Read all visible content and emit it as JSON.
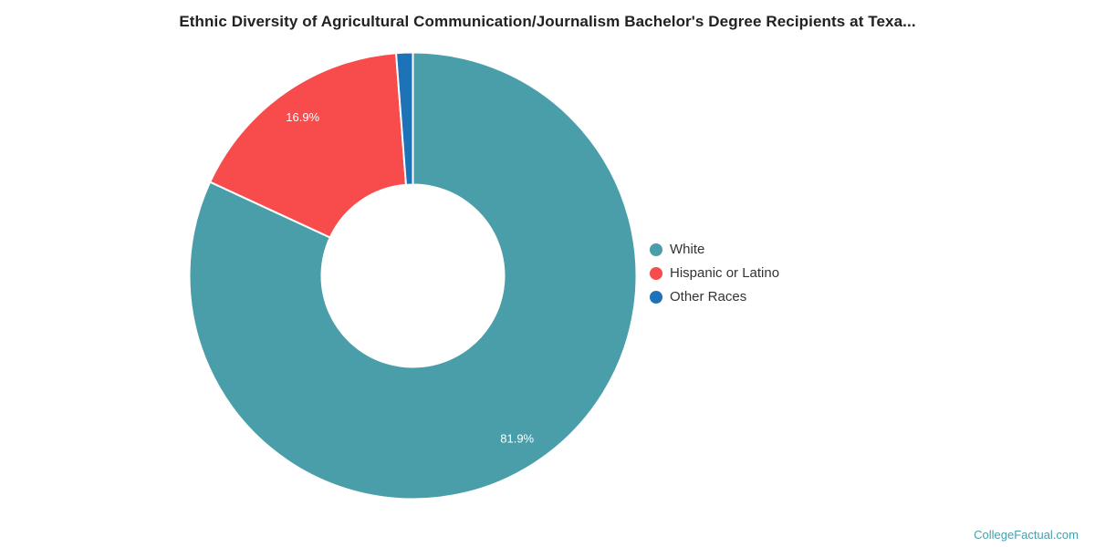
{
  "title": "Ethnic Diversity of Agricultural Communication/Journalism Bachelor's Degree Recipients at Texa...",
  "watermark": "CollegeFactual.com",
  "colors": {
    "title_text": "#212121",
    "legend_text": "#333333",
    "slice_label_text": "#ffffff",
    "watermark_text": "#4a9eaa",
    "background": "#ffffff",
    "slice_border": "#ffffff"
  },
  "chart_data": {
    "type": "pie",
    "subtype": "donut",
    "title": "Ethnic Diversity of Agricultural Communication/Journalism Bachelor's Degree Recipients at Texa...",
    "legend_position": "right",
    "start_angle_deg": 0,
    "direction": "clockwise",
    "outer_radius": 245,
    "inner_radius": 100,
    "label_radius": 212,
    "slices": [
      {
        "label": "White",
        "value": 81.9,
        "display": "81.9%",
        "color": "#4a9eaa"
      },
      {
        "label": "Hispanic or Latino",
        "value": 16.9,
        "display": "16.9%",
        "color": "#f84b4b"
      },
      {
        "label": "Other Races",
        "value": 1.2,
        "display": "",
        "color": "#1d72b8"
      }
    ]
  }
}
